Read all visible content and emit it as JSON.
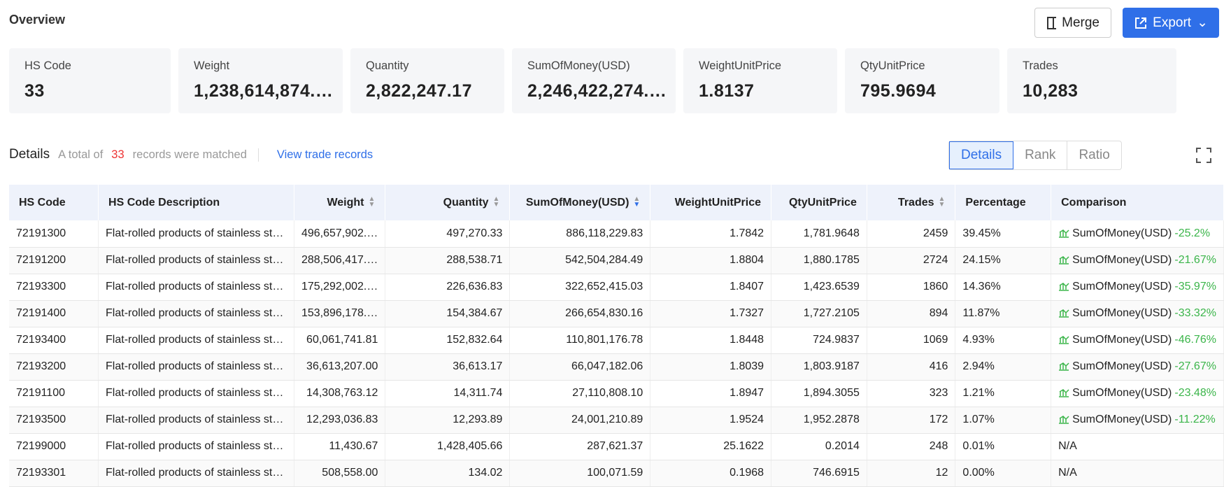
{
  "header": {
    "title": "Overview",
    "buttons": [
      "Merge",
      "Export"
    ]
  },
  "stats": [
    {
      "label": "HS Code",
      "value": "33"
    },
    {
      "label": "Weight",
      "value": "1,238,614,874.…"
    },
    {
      "label": "Quantity",
      "value": "2,822,247.17"
    },
    {
      "label": "SumOfMoney(USD)",
      "value": "2,246,422,274.…"
    },
    {
      "label": "WeightUnitPrice",
      "value": "1.8137"
    },
    {
      "label": "QtyUnitPrice",
      "value": "795.9694"
    },
    {
      "label": "Trades",
      "value": "10,283"
    }
  ],
  "details": {
    "title": "Details",
    "summary_prefix": "A total of",
    "count": "33",
    "summary_suffix": "records were matched",
    "link": "View trade records",
    "tabs": [
      "Details",
      "Rank",
      "Ratio"
    ]
  },
  "table": {
    "columns": [
      "HS Code",
      "HS Code Description",
      "Weight",
      "Quantity",
      "SumOfMoney(USD)",
      "WeightUnitPrice",
      "QtyUnitPrice",
      "Trades",
      "Percentage",
      "Comparison"
    ],
    "rows": [
      [
        "72191300",
        "Flat-rolled products of stainless st…",
        "496,657,902.…",
        "497,270.33",
        "886,118,229.83",
        "1.7842",
        "1,781.9648",
        "2459",
        "39.45%",
        {
          "label": "SumOfMoney(USD)",
          "change": "-25.2%"
        }
      ],
      [
        "72191200",
        "Flat-rolled products of stainless st…",
        "288,506,417.…",
        "288,538.71",
        "542,504,284.49",
        "1.8804",
        "1,880.1785",
        "2724",
        "24.15%",
        {
          "label": "SumOfMoney(USD)",
          "change": "-21.67%"
        }
      ],
      [
        "72193300",
        "Flat-rolled products of stainless st…",
        "175,292,002.…",
        "226,636.83",
        "322,652,415.03",
        "1.8407",
        "1,423.6539",
        "1860",
        "14.36%",
        {
          "label": "SumOfMoney(USD)",
          "change": "-35.97%"
        }
      ],
      [
        "72191400",
        "Flat-rolled products of stainless st…",
        "153,896,178.…",
        "154,384.67",
        "266,654,830.16",
        "1.7327",
        "1,727.2105",
        "894",
        "11.87%",
        {
          "label": "SumOfMoney(USD)",
          "change": "-33.32%"
        }
      ],
      [
        "72193400",
        "Flat-rolled products of stainless st…",
        "60,061,741.81",
        "152,832.64",
        "110,801,176.78",
        "1.8448",
        "724.9837",
        "1069",
        "4.93%",
        {
          "label": "SumOfMoney(USD)",
          "change": "-46.76%"
        }
      ],
      [
        "72193200",
        "Flat-rolled products of stainless st…",
        "36,613,207.00",
        "36,613.17",
        "66,047,182.06",
        "1.8039",
        "1,803.9187",
        "416",
        "2.94%",
        {
          "label": "SumOfMoney(USD)",
          "change": "-27.67%"
        }
      ],
      [
        "72191100",
        "Flat-rolled products of stainless st…",
        "14,308,763.12",
        "14,311.74",
        "27,110,808.10",
        "1.8947",
        "1,894.3055",
        "323",
        "1.21%",
        {
          "label": "SumOfMoney(USD)",
          "change": "-23.48%"
        }
      ],
      [
        "72193500",
        "Flat-rolled products of stainless st…",
        "12,293,036.83",
        "12,293.89",
        "24,001,210.89",
        "1.9524",
        "1,952.2878",
        "172",
        "1.07%",
        {
          "label": "SumOfMoney(USD)",
          "change": "-11.22%"
        }
      ],
      [
        "72199000",
        "Flat-rolled products of stainless st…",
        "11,430.67",
        "1,428,405.66",
        "287,621.37",
        "25.1622",
        "0.2014",
        "248",
        "0.01%",
        "N/A"
      ],
      [
        "72193301",
        "Flat-rolled products of stainless st…",
        "508,558.00",
        "134.02",
        "100,071.59",
        "0.1968",
        "746.6915",
        "12",
        "0.00%",
        "N/A"
      ]
    ]
  }
}
